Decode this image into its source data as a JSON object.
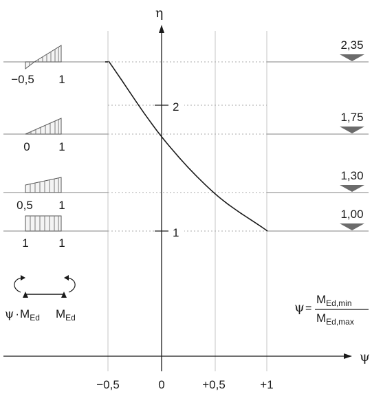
{
  "axes": {
    "y_label": "η",
    "x_label": "ψ",
    "x_ticks": [
      "−0,5",
      "0",
      "+0,5",
      "+1"
    ],
    "y_ticks": [
      "2",
      "1"
    ]
  },
  "reference_levels": [
    {
      "label": "2,35",
      "value": 2.35
    },
    {
      "label": "1,75",
      "value": 1.75
    },
    {
      "label": "1,30",
      "value": 1.3
    },
    {
      "label": "1,00",
      "value": 1.0
    }
  ],
  "moment_diagrams": [
    {
      "left_label": "−0,5",
      "right_label": "1",
      "psi": -0.5
    },
    {
      "left_label": "0",
      "right_label": "1",
      "psi": 0
    },
    {
      "left_label": "0,5",
      "right_label": "1",
      "psi": 0.5
    },
    {
      "left_label": "1",
      "right_label": "1",
      "psi": 1
    }
  ],
  "beam_legend": {
    "left_psi": "ψ",
    "dot": "·",
    "left_m": "M",
    "left_sub": "Ed",
    "right_m": "M",
    "right_sub": "Ed"
  },
  "formula": {
    "lhs": "ψ",
    "equals": "=",
    "num_m": "M",
    "num_sub": "Ed,min",
    "den_m": "M",
    "den_sub": "Ed,max"
  },
  "chart_data": {
    "type": "line",
    "x": [
      -0.5,
      0,
      0.5,
      1
    ],
    "y": [
      2.35,
      1.75,
      1.3,
      1.0
    ],
    "xlim": [
      -1.0,
      1.3
    ],
    "ylim": [
      0,
      2.7
    ],
    "xlabel": "ψ",
    "ylabel": "η"
  },
  "colors": {
    "curve": "#1a1a1a",
    "grid": "#bdbdbd",
    "marker": "#6b6b6b",
    "hatch": "#888888"
  }
}
